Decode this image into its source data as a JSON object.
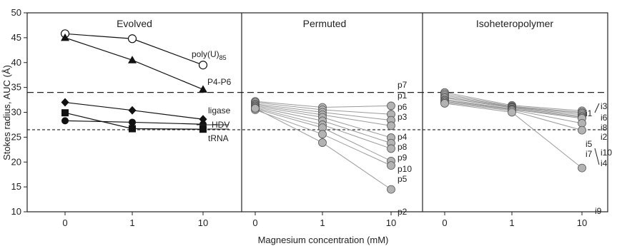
{
  "chart_data": {
    "type": "line",
    "ylabel": "Stokes radius, AUC (Å)",
    "xlabel": "Magnesium concentration (mM)",
    "x_categories": [
      "0",
      "1",
      "10"
    ],
    "ylim": [
      10,
      50
    ],
    "yticks": [
      10,
      15,
      20,
      25,
      30,
      35,
      40,
      45,
      50
    ],
    "grid": false,
    "reference_lines": [
      {
        "y": 34,
        "style": "long-dash"
      },
      {
        "y": 26.5,
        "style": "short-dash"
      }
    ],
    "panels": [
      {
        "title": "Evolved",
        "series": [
          {
            "name": "poly(U)85",
            "marker": "open-circle",
            "values": [
              45.8,
              44.8,
              39.5
            ]
          },
          {
            "name": "P4-P6",
            "marker": "triangle",
            "values": [
              45.0,
              40.5,
              34.6
            ]
          },
          {
            "name": "ligase",
            "marker": "diamond",
            "values": [
              32.0,
              30.4,
              28.6
            ]
          },
          {
            "name": "HDV",
            "marker": "filled-circle",
            "values": [
              28.3,
              28.0,
              27.6
            ]
          },
          {
            "name": "tRNA",
            "marker": "square",
            "values": [
              29.9,
              26.7,
              26.6
            ]
          }
        ]
      },
      {
        "title": "Permuted",
        "series": [
          {
            "name": "p7",
            "values": [
              32.2,
              31.0,
              31.3
            ]
          },
          {
            "name": "p1",
            "values": [
              32.0,
              30.5,
              29.6
            ]
          },
          {
            "name": "p6",
            "values": [
              31.7,
              30.0,
              28.4
            ]
          },
          {
            "name": "p3",
            "values": [
              31.5,
              29.5,
              27.3
            ]
          },
          {
            "name": "p4",
            "values": [
              31.3,
              29.0,
              24.9
            ]
          },
          {
            "name": "p8",
            "values": [
              31.1,
              28.3,
              23.8
            ]
          },
          {
            "name": "p9",
            "values": [
              30.9,
              27.5,
              22.7
            ]
          },
          {
            "name": "p10",
            "values": [
              30.7,
              26.9,
              20.2
            ]
          },
          {
            "name": "p5",
            "values": [
              30.5,
              25.6,
              19.3
            ]
          },
          {
            "name": "p2",
            "values": [
              30.8,
              23.9,
              14.5
            ]
          }
        ]
      },
      {
        "title": "Isoheteropolymer",
        "series": [
          {
            "name": "i3",
            "values": [
              34.0,
              31.4,
              30.3
            ]
          },
          {
            "name": "i6",
            "values": [
              33.7,
              31.2,
              30.0
            ]
          },
          {
            "name": "i1",
            "values": [
              33.4,
              31.1,
              29.8
            ]
          },
          {
            "name": "i8",
            "values": [
              33.1,
              31.0,
              29.5
            ]
          },
          {
            "name": "i2",
            "values": [
              32.9,
              30.9,
              29.2
            ]
          },
          {
            "name": "i5",
            "values": [
              32.6,
              30.7,
              29.0
            ]
          },
          {
            "name": "i10",
            "values": [
              32.4,
              30.6,
              28.8
            ]
          },
          {
            "name": "i7",
            "values": [
              32.2,
              30.5,
              27.8
            ]
          },
          {
            "name": "i4",
            "values": [
              32.0,
              30.3,
              26.4
            ]
          },
          {
            "name": "i9",
            "values": [
              31.8,
              30.0,
              18.8
            ]
          }
        ]
      }
    ],
    "colors": {
      "filled": "#111111",
      "gray_marker": "#b3b3b3",
      "gray_line": "#9a9a9a",
      "axis": "#222222"
    }
  },
  "labels": {
    "poly_u": {
      "base": "poly(U)",
      "sub": "85"
    },
    "p4p6": "P4-P6",
    "ligase": "ligase",
    "hdv": "HDV",
    "trna": "tRNA",
    "permuted": [
      "p7",
      "p1",
      "p6",
      "p3",
      "p4",
      "p8",
      "p9",
      "p10",
      "p5",
      "p2"
    ],
    "iso": [
      "i3",
      "i6",
      "i8",
      "i2",
      "i1",
      "i5",
      "i7",
      "i10",
      "i4",
      "i9"
    ]
  }
}
